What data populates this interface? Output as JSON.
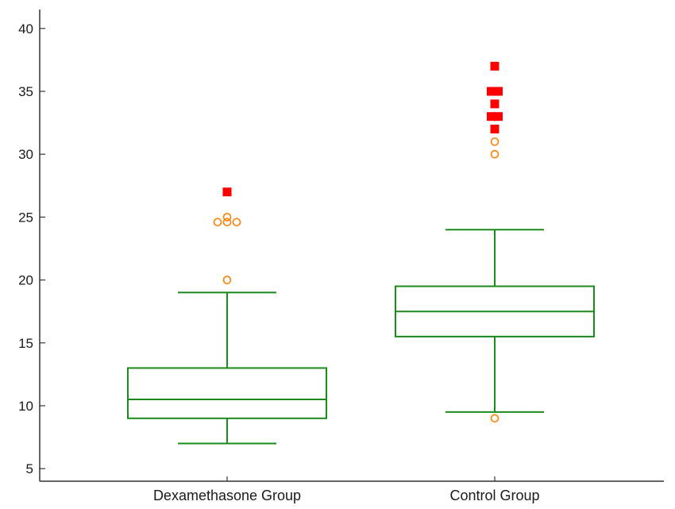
{
  "chart_data": {
    "type": "boxplot",
    "title": "",
    "xlabel": "",
    "ylabel": "",
    "ylim": [
      4,
      41
    ],
    "yticks": [
      5,
      10,
      15,
      20,
      25,
      30,
      35,
      40
    ],
    "grid": false,
    "legend": "none",
    "categories": [
      "Dexamethasone Group",
      "Control Group"
    ],
    "boxes": [
      {
        "category": "Dexamethasone Group",
        "whisker_low": 7,
        "q1": 9,
        "median": 10.5,
        "q3": 13,
        "whisker_high": 19,
        "outliers": [
          20,
          24.6,
          24.6,
          24.6,
          25
        ],
        "extremes": [
          27
        ]
      },
      {
        "category": "Control Group",
        "whisker_low": 9.5,
        "q1": 15.5,
        "median": 17.5,
        "q3": 19.5,
        "whisker_high": 24,
        "outliers": [
          9,
          30,
          31
        ],
        "extremes": [
          32,
          33,
          33,
          34,
          35,
          35,
          37
        ]
      }
    ],
    "colors": {
      "box": "#1a8a1a",
      "outlier": "#ff8000",
      "extreme": "#ff0000",
      "axis": "#333333",
      "text": "#1a1a1a"
    }
  }
}
